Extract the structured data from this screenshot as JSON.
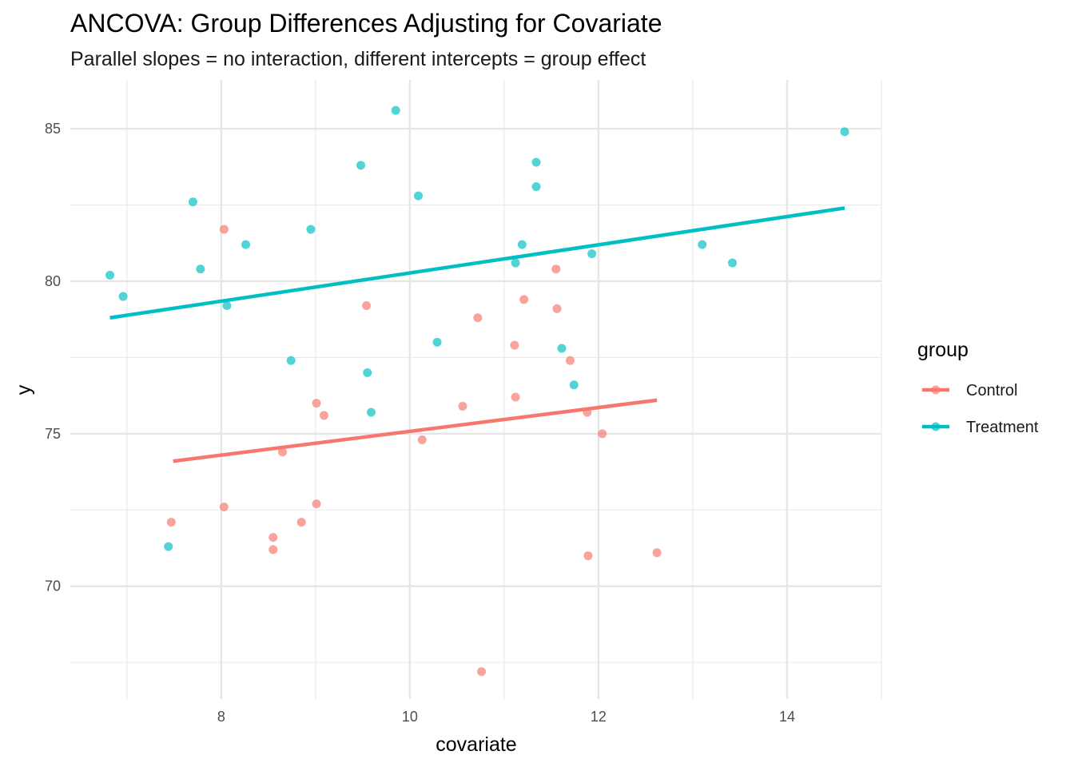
{
  "chart_data": {
    "type": "scatter",
    "title": "ANCOVA: Group Differences Adjusting for Covariate",
    "subtitle": "Parallel slopes = no interaction, different intercepts = group effect",
    "xlabel": "covariate",
    "ylabel": "y",
    "xlim": [
      6.4,
      15.0
    ],
    "ylim": [
      66.3,
      86.6
    ],
    "x_ticks": [
      8,
      10,
      12,
      14
    ],
    "y_ticks": [
      70,
      75,
      80,
      85
    ],
    "x_minor_ticks": [
      7,
      9,
      11,
      13,
      15
    ],
    "y_minor_ticks": [
      67.5,
      72.5,
      77.5,
      82.5
    ],
    "grid": true,
    "legend": {
      "title": "group",
      "position": "right"
    },
    "series": [
      {
        "name": "Control",
        "color": "#F8766D",
        "points": [
          [
            8.03,
            81.7
          ],
          [
            7.47,
            72.1
          ],
          [
            8.03,
            72.6
          ],
          [
            8.55,
            71.6
          ],
          [
            8.55,
            71.2
          ],
          [
            8.85,
            72.1
          ],
          [
            9.01,
            72.7
          ],
          [
            9.01,
            76.0
          ],
          [
            9.09,
            75.6
          ],
          [
            8.65,
            74.4
          ],
          [
            9.54,
            79.2
          ],
          [
            10.13,
            74.8
          ],
          [
            10.56,
            75.9
          ],
          [
            10.72,
            78.8
          ],
          [
            10.76,
            67.2
          ],
          [
            11.11,
            77.9
          ],
          [
            11.12,
            76.2
          ],
          [
            11.21,
            79.4
          ],
          [
            11.55,
            80.4
          ],
          [
            11.56,
            79.1
          ],
          [
            11.7,
            77.4
          ],
          [
            11.88,
            75.7
          ],
          [
            11.89,
            71.0
          ],
          [
            12.04,
            75.0
          ],
          [
            12.62,
            71.1
          ]
        ],
        "fit": {
          "x": [
            7.49,
            12.62
          ],
          "y": [
            74.1,
            76.1
          ]
        }
      },
      {
        "name": "Treatment",
        "color": "#00BFC4",
        "points": [
          [
            6.82,
            80.2
          ],
          [
            6.96,
            79.5
          ],
          [
            7.44,
            71.3
          ],
          [
            7.7,
            82.6
          ],
          [
            7.78,
            80.4
          ],
          [
            8.06,
            79.2
          ],
          [
            8.26,
            81.2
          ],
          [
            8.74,
            77.4
          ],
          [
            8.95,
            81.7
          ],
          [
            9.48,
            83.8
          ],
          [
            9.55,
            77.0
          ],
          [
            9.59,
            75.7
          ],
          [
            9.85,
            85.6
          ],
          [
            10.09,
            82.8
          ],
          [
            10.29,
            78.0
          ],
          [
            11.12,
            80.6
          ],
          [
            11.19,
            81.2
          ],
          [
            11.34,
            83.9
          ],
          [
            11.34,
            83.1
          ],
          [
            11.61,
            77.8
          ],
          [
            11.74,
            76.6
          ],
          [
            11.93,
            80.9
          ],
          [
            13.1,
            81.2
          ],
          [
            13.42,
            80.6
          ],
          [
            14.61,
            84.9
          ]
        ],
        "fit": {
          "x": [
            6.82,
            14.61
          ],
          "y": [
            78.8,
            82.4
          ]
        }
      }
    ]
  }
}
